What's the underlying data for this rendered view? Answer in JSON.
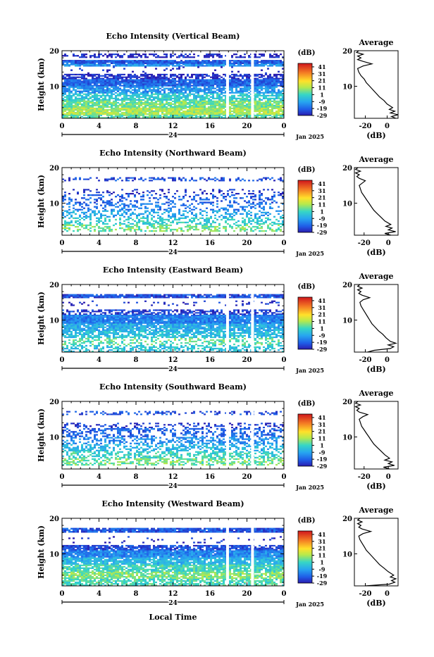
{
  "figure": {
    "xlabel": "Local Time",
    "date_label": "Jan 2025",
    "colorbar_unit": "(dB)",
    "profile_title": "Average",
    "profile_xlabel": "(dB)"
  },
  "chart_data": [
    {
      "type": "heatmap",
      "title": "Echo Intensity (Vertical Beam)",
      "xlabel": "Local Time",
      "ylabel": "Height (km)",
      "xticks": [
        "0",
        "4",
        "8",
        "12",
        "16",
        "20",
        "0"
      ],
      "day_marker": "24",
      "yticks": [
        "20",
        "10"
      ],
      "xlim": [
        0,
        24
      ],
      "ylim": [
        1,
        20
      ],
      "colorbar": {
        "label": "(dB)",
        "ticks": [
          "41",
          "31",
          "21",
          "11",
          "1",
          "-9",
          "-19",
          "-29"
        ],
        "range": [
          -29,
          46
        ]
      },
      "layers": [
        {
          "y0": 18.0,
          "y1": 19.2,
          "dB": -27,
          "cov": 0.55
        },
        {
          "y0": 16.3,
          "y1": 17.4,
          "dB": -20,
          "cov": 0.95
        },
        {
          "y0": 15.6,
          "y1": 16.3,
          "dB": -12,
          "cov": 0.9
        },
        {
          "y0": 13.5,
          "y1": 15.6,
          "dB": -28,
          "cov": 0.06
        },
        {
          "y0": 12.0,
          "y1": 13.5,
          "dB": -27,
          "cov": 0.75
        },
        {
          "y0": 10.0,
          "y1": 12.0,
          "dB": -19,
          "cov": 0.97
        },
        {
          "y0": 8.0,
          "y1": 10.0,
          "dB": -12,
          "cov": 0.75
        },
        {
          "y0": 6.0,
          "y1": 8.0,
          "dB": -2,
          "cov": 0.75
        },
        {
          "y0": 4.0,
          "y1": 6.0,
          "dB": 6,
          "cov": 0.88
        },
        {
          "y0": 2.0,
          "y1": 4.0,
          "dB": 11,
          "cov": 0.92
        },
        {
          "y0": 1.0,
          "y1": 2.0,
          "dB": 3,
          "cov": 0.85
        }
      ],
      "gaps": [
        17.9,
        20.6
      ],
      "profile": {
        "xticks": [
          "-20",
          "0"
        ],
        "xlim": [
          -30,
          10
        ],
        "yticks": [
          "20",
          "10"
        ],
        "height_km": [
          1.0,
          1.5,
          2.0,
          2.5,
          3.0,
          3.5,
          4.0,
          5.0,
          6.0,
          7.0,
          8.0,
          9.0,
          10.0,
          11.0,
          12.0,
          13.0,
          14.0,
          15.0,
          15.7,
          16.3,
          17.0,
          17.5,
          18.0,
          18.5,
          19.0,
          19.5,
          20.0
        ],
        "dB": [
          8,
          4,
          10,
          3,
          7,
          2,
          5,
          0,
          -3,
          -7,
          -10,
          -13,
          -16,
          -19,
          -21,
          -24,
          -26,
          -27,
          -22,
          -14,
          -22,
          -27,
          -24,
          -27,
          -22,
          -28,
          -26
        ]
      }
    },
    {
      "type": "heatmap",
      "title": "Echo Intensity (Northward Beam)",
      "xlabel": "Local Time",
      "ylabel": "Height (km)",
      "xticks": [
        "0",
        "4",
        "8",
        "12",
        "16",
        "20",
        "0"
      ],
      "day_marker": "24",
      "yticks": [
        "20",
        "10"
      ],
      "xlim": [
        0,
        24
      ],
      "ylim": [
        1,
        20
      ],
      "colorbar": {
        "label": "(dB)",
        "ticks": [
          "41",
          "31",
          "21",
          "11",
          "1",
          "-9",
          "-19",
          "-29"
        ],
        "range": [
          -29,
          46
        ]
      },
      "layers": [
        {
          "y0": 16.2,
          "y1": 17.3,
          "dB": -22,
          "cov": 0.35
        },
        {
          "y0": 12.5,
          "y1": 14.0,
          "dB": -26,
          "cov": 0.18
        },
        {
          "y0": 10.0,
          "y1": 12.5,
          "dB": -20,
          "cov": 0.3
        },
        {
          "y0": 8.0,
          "y1": 10.0,
          "dB": -16,
          "cov": 0.3
        },
        {
          "y0": 6.0,
          "y1": 8.0,
          "dB": -9,
          "cov": 0.35
        },
        {
          "y0": 4.0,
          "y1": 6.0,
          "dB": -1,
          "cov": 0.45
        },
        {
          "y0": 2.0,
          "y1": 4.0,
          "dB": 6,
          "cov": 0.5
        }
      ],
      "gaps": [],
      "profile": {
        "xticks": [
          "-20",
          "0"
        ],
        "xlim": [
          -28,
          8
        ],
        "yticks": [
          "20",
          "10"
        ],
        "height_km": [
          1.0,
          1.5,
          2.0,
          2.5,
          3.0,
          3.5,
          4.0,
          5.0,
          6.0,
          7.0,
          8.0,
          9.0,
          10.0,
          11.0,
          12.0,
          13.0,
          14.0,
          15.0,
          15.5,
          16.3,
          17.0,
          17.5,
          18.0,
          18.5,
          19.0,
          19.5,
          20.0
        ],
        "dB": [
          2,
          -3,
          6,
          0,
          3,
          -2,
          2,
          -3,
          -6,
          -9,
          -12,
          -14,
          -16,
          -18,
          -20,
          -22,
          -23,
          -24,
          -22,
          -19,
          -24,
          -26,
          -24,
          -27,
          -23,
          -27,
          -25
        ]
      }
    },
    {
      "type": "heatmap",
      "title": "Echo Intensity (Eastward Beam)",
      "xlabel": "Local Time",
      "ylabel": "Height (km)",
      "xticks": [
        "0",
        "4",
        "8",
        "12",
        "16",
        "20",
        "0"
      ],
      "day_marker": "24",
      "yticks": [
        "20",
        "10"
      ],
      "xlim": [
        0,
        24
      ],
      "ylim": [
        1,
        20
      ],
      "colorbar": {
        "label": "(dB)",
        "ticks": [
          "41",
          "31",
          "21",
          "11",
          "1",
          "-9",
          "-19",
          "-29"
        ],
        "range": [
          -29,
          46
        ]
      },
      "layers": [
        {
          "y0": 16.2,
          "y1": 17.3,
          "dB": -22,
          "cov": 0.9
        },
        {
          "y0": 14.0,
          "y1": 15.5,
          "dB": -26,
          "cov": 0.1
        },
        {
          "y0": 11.5,
          "y1": 13.0,
          "dB": -24,
          "cov": 0.55
        },
        {
          "y0": 9.0,
          "y1": 11.5,
          "dB": -15,
          "cov": 0.97
        },
        {
          "y0": 7.0,
          "y1": 9.0,
          "dB": -8,
          "cov": 0.85
        },
        {
          "y0": 5.0,
          "y1": 7.0,
          "dB": -4,
          "cov": 0.7
        },
        {
          "y0": 3.0,
          "y1": 5.0,
          "dB": 4,
          "cov": 0.45
        },
        {
          "y0": 1.0,
          "y1": 3.0,
          "dB": -3,
          "cov": 0.5
        }
      ],
      "gaps": [
        17.9,
        20.6
      ],
      "profile": {
        "xticks": [
          "-20",
          "0"
        ],
        "xlim": [
          -30,
          10
        ],
        "yticks": [
          "20",
          "10"
        ],
        "height_km": [
          1.0,
          1.5,
          2.0,
          2.5,
          3.0,
          3.5,
          4.0,
          5.0,
          6.0,
          7.0,
          8.0,
          9.0,
          10.0,
          11.0,
          12.0,
          13.0,
          14.0,
          15.0,
          15.7,
          16.3,
          17.0,
          17.5,
          18.0,
          18.5,
          19.0,
          19.5,
          20.0
        ],
        "dB": [
          -18,
          -12,
          3,
          6,
          1,
          8,
          3,
          -1,
          -4,
          -8,
          -11,
          -14,
          -16,
          -18,
          -20,
          -22,
          -24,
          -25,
          -22,
          -16,
          -23,
          -26,
          -24,
          -27,
          -23,
          -27,
          -25
        ]
      }
    },
    {
      "type": "heatmap",
      "title": "Echo Intensity (Southward Beam)",
      "xlabel": "Local Time",
      "ylabel": "Height (km)",
      "xticks": [
        "0",
        "4",
        "8",
        "12",
        "16",
        "20",
        "0"
      ],
      "day_marker": "24",
      "yticks": [
        "20",
        "10"
      ],
      "xlim": [
        0,
        24
      ],
      "ylim": [
        1,
        20
      ],
      "colorbar": {
        "label": "(dB)",
        "ticks": [
          "41",
          "31",
          "21",
          "11",
          "1",
          "-9",
          "-19",
          "-29"
        ],
        "range": [
          -29,
          46
        ]
      },
      "layers": [
        {
          "y0": 16.2,
          "y1": 17.3,
          "dB": -22,
          "cov": 0.35
        },
        {
          "y0": 12.5,
          "y1": 14.0,
          "dB": -25,
          "cov": 0.3
        },
        {
          "y0": 10.0,
          "y1": 12.5,
          "dB": -19,
          "cov": 0.4
        },
        {
          "y0": 8.0,
          "y1": 10.0,
          "dB": -13,
          "cov": 0.45
        },
        {
          "y0": 6.0,
          "y1": 8.0,
          "dB": -6,
          "cov": 0.5
        },
        {
          "y0": 4.0,
          "y1": 6.0,
          "dB": 0,
          "cov": 0.55
        },
        {
          "y0": 2.0,
          "y1": 4.0,
          "dB": 6,
          "cov": 0.55
        }
      ],
      "gaps": [
        17.9,
        20.6
      ],
      "profile": {
        "xticks": [
          "-20",
          "0"
        ],
        "xlim": [
          -28,
          8
        ],
        "yticks": [
          "20",
          "10"
        ],
        "height_km": [
          1.0,
          1.5,
          2.0,
          2.5,
          3.0,
          3.5,
          4.0,
          5.0,
          6.0,
          7.0,
          8.0,
          9.0,
          10.0,
          11.0,
          12.0,
          13.0,
          14.0,
          15.0,
          15.7,
          16.3,
          17.0,
          17.5,
          18.0,
          18.5,
          19.0,
          19.5,
          20.0
        ],
        "dB": [
          1,
          -4,
          5,
          0,
          3,
          -3,
          1,
          -3,
          -6,
          -9,
          -12,
          -14,
          -16,
          -18,
          -20,
          -22,
          -23,
          -24,
          -21,
          -17,
          -24,
          -26,
          -24,
          -27,
          -23,
          -27,
          -25
        ]
      }
    },
    {
      "type": "heatmap",
      "title": "Echo Intensity (Westward Beam)",
      "xlabel": "Local Time",
      "ylabel": "Height (km)",
      "xticks": [
        "0",
        "4",
        "8",
        "12",
        "16",
        "20",
        "0"
      ],
      "day_marker": "24",
      "yticks": [
        "20",
        "10"
      ],
      "xlim": [
        0,
        24
      ],
      "ylim": [
        1,
        20
      ],
      "colorbar": {
        "label": "(dB)",
        "ticks": [
          "41",
          "31",
          "21",
          "11",
          "1",
          "-9",
          "-19",
          "-29"
        ],
        "range": [
          -29,
          46
        ]
      },
      "layers": [
        {
          "y0": 16.0,
          "y1": 17.3,
          "dB": -21,
          "cov": 0.92
        },
        {
          "y0": 13.0,
          "y1": 15.0,
          "dB": -27,
          "cov": 0.08
        },
        {
          "y0": 11.0,
          "y1": 12.5,
          "dB": -22,
          "cov": 0.8
        },
        {
          "y0": 9.0,
          "y1": 11.0,
          "dB": -14,
          "cov": 0.95
        },
        {
          "y0": 7.0,
          "y1": 9.0,
          "dB": -6,
          "cov": 0.85
        },
        {
          "y0": 5.0,
          "y1": 7.0,
          "dB": 1,
          "cov": 0.85
        },
        {
          "y0": 3.0,
          "y1": 5.0,
          "dB": 7,
          "cov": 0.8
        },
        {
          "y0": 1.0,
          "y1": 3.0,
          "dB": 2,
          "cov": 0.7
        }
      ],
      "gaps": [
        17.9,
        20.6
      ],
      "profile": {
        "xticks": [
          "-20",
          "0"
        ],
        "xlim": [
          -30,
          10
        ],
        "yticks": [
          "20",
          "10"
        ],
        "height_km": [
          1.0,
          1.5,
          2.0,
          2.5,
          3.0,
          3.5,
          4.0,
          5.0,
          6.0,
          7.0,
          8.0,
          9.0,
          10.0,
          11.0,
          12.0,
          13.0,
          14.0,
          15.0,
          15.7,
          16.3,
          17.0,
          17.5,
          18.0,
          18.5,
          19.0,
          19.5,
          20.0
        ],
        "dB": [
          -20,
          2,
          7,
          4,
          8,
          3,
          6,
          1,
          -3,
          -7,
          -10,
          -13,
          -16,
          -19,
          -21,
          -23,
          -25,
          -26,
          -22,
          -15,
          -23,
          -26,
          -24,
          -27,
          -23,
          -27,
          -25
        ]
      }
    }
  ]
}
